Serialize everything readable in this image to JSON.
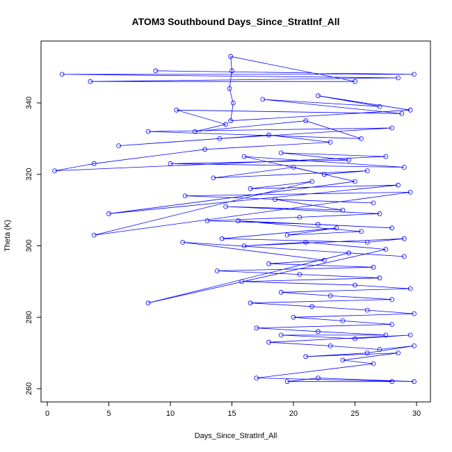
{
  "chart_data": {
    "type": "line",
    "title": "ATOM3 Southbound Days_Since_StratInf_All",
    "xlabel": "Days_Since_StratInf_All",
    "ylabel": "Theta (K)",
    "xlim": [
      0,
      30
    ],
    "ylim": [
      260,
      355
    ],
    "xticks": [
      "0",
      "5",
      "10",
      "15",
      "20",
      "25",
      "30"
    ],
    "yticks": [
      "260",
      "280",
      "300",
      "320",
      "340"
    ],
    "grid": false,
    "legend": "none",
    "color": "#0000ff",
    "marker": "open-circle",
    "series": [
      {
        "x": [
          8.8,
          29.8,
          1.2,
          28.5,
          3.5,
          25.0,
          14.9,
          15.0,
          14.8,
          15.1,
          14.9,
          29.5,
          22.0,
          27.0,
          17.5,
          28.8,
          10.5,
          14.5,
          12.0,
          21.0,
          25.5,
          8.2,
          28.0,
          14.0,
          5.8,
          18.0,
          23.0,
          12.8,
          3.8,
          0.6,
          27.5,
          19.0,
          24.5,
          10.0,
          29.0,
          16.0,
          22.5,
          26.0,
          13.5,
          20.0,
          25.0,
          5.0,
          28.5,
          16.5,
          21.5,
          3.8,
          29.5,
          11.2,
          26.5,
          18.5,
          24.0,
          14.5,
          27.0,
          20.5,
          13.0,
          22.0,
          28.0,
          15.5,
          25.5,
          19.5,
          23.5,
          14.2,
          26.0,
          29.0,
          16.0,
          21.0,
          27.5,
          8.2,
          24.5,
          29.0,
          11.0,
          22.5,
          18.0,
          26.5,
          13.8,
          20.5,
          27.0,
          15.8,
          25.0,
          29.5,
          19.0,
          23.0,
          28.0,
          16.5,
          21.5,
          26.0,
          29.8,
          20.0,
          24.0,
          28.0,
          17.0,
          22.0,
          27.5,
          19.0,
          25.0,
          29.5,
          18.0,
          23.0,
          27.0,
          29.8,
          26.0,
          21.0,
          28.5,
          24.0,
          26.5,
          17.0,
          29.8,
          22.0,
          19.5,
          28.0
        ],
        "y": [
          349,
          348,
          348,
          347,
          346,
          346,
          353,
          349,
          344,
          340,
          335,
          338,
          342,
          339,
          341,
          337,
          338,
          334,
          332,
          335,
          330,
          332,
          333,
          330,
          328,
          331,
          329,
          327,
          323,
          321,
          325,
          326,
          324,
          323,
          322,
          325,
          320,
          321,
          319,
          322,
          318,
          309,
          317,
          316,
          318,
          303,
          315,
          314,
          312,
          313,
          310,
          311,
          309,
          308,
          307,
          306,
          305,
          307,
          304,
          303,
          305,
          302,
          301,
          302,
          300,
          301,
          299,
          284,
          298,
          297,
          301,
          296,
          295,
          294,
          293,
          292,
          291,
          290,
          289,
          288,
          287,
          286,
          285,
          284,
          283,
          282,
          281,
          280,
          279,
          278,
          277,
          276,
          275,
          275,
          274,
          275,
          273,
          272,
          271,
          272,
          270,
          269,
          270,
          268,
          267,
          263,
          262,
          263,
          262,
          262
        ]
      }
    ]
  }
}
